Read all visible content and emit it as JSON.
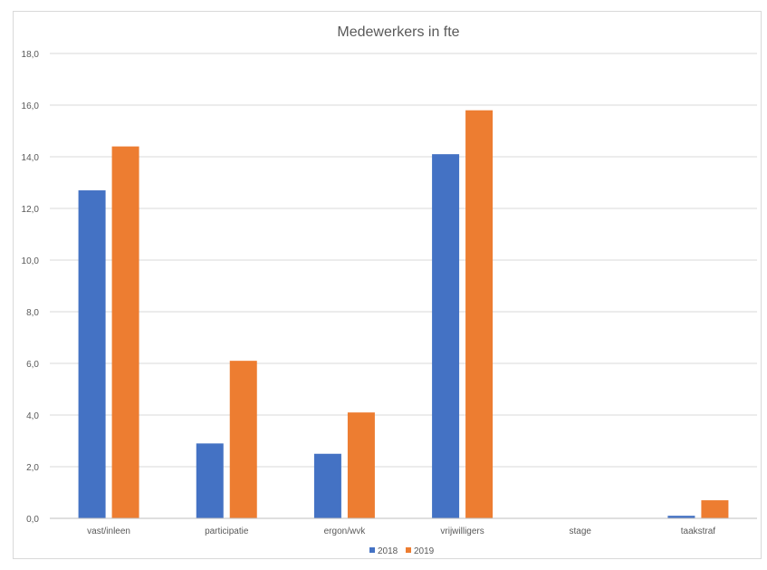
{
  "chart_data": {
    "type": "bar",
    "title": "Medewerkers in fte",
    "categories": [
      "vast/inleen",
      "participatie",
      "ergon/wvk",
      "vrijwilligers",
      "stage",
      "taakstraf"
    ],
    "series": [
      {
        "name": "2018",
        "color": "#4472C4",
        "values": [
          12.7,
          2.9,
          2.5,
          14.1,
          0.0,
          0.1
        ]
      },
      {
        "name": "2019",
        "color": "#ED7D31",
        "values": [
          14.4,
          6.1,
          4.1,
          15.8,
          0.0,
          0.7
        ]
      }
    ],
    "yticks": [
      "0,0",
      "2,0",
      "4,0",
      "6,0",
      "8,0",
      "10,0",
      "12,0",
      "14,0",
      "16,0",
      "18,0"
    ],
    "ylim": [
      0,
      18
    ],
    "grid": true,
    "legend_position": "bottom"
  }
}
